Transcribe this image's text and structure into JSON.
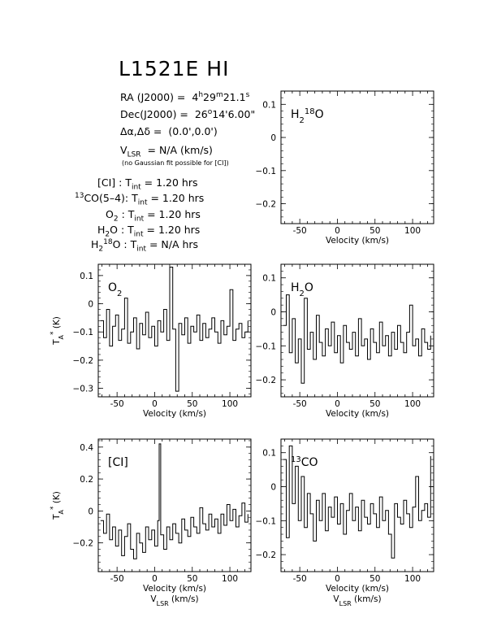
{
  "title": "L1521E HI",
  "info": {
    "ra_label": "RA (J2000) =",
    "ra_h": "4",
    "ra_m": "29",
    "ra_s": "21.1",
    "dec_label": "Dec(J2000) =",
    "dec_d": "26",
    "dec_m": "14",
    "dec_s": "6.00",
    "offset_label": "Δα,Δδ =",
    "offset_value": "(0.0',0.0')",
    "vlsr_value": "= N/A  (km/s)",
    "note": "(no Gaussian fit possible for [CI])",
    "tint": [
      {
        "species": "[CI] :",
        "value": "1.20 hrs"
      },
      {
        "species": "CO(5–4):",
        "value": "1.20 hrs"
      },
      {
        "species": ":",
        "value": "1.20 hrs"
      },
      {
        "species": ":",
        "value": "1.20 hrs"
      },
      {
        "species": ":",
        "value": "N/A hrs"
      }
    ]
  },
  "chart_data": [
    {
      "type": "line",
      "label": "H2 18O",
      "line_name": "H2 18O",
      "xlabel": "Velocity (km/s)",
      "ylabel": "",
      "xlim": [
        -75,
        128
      ],
      "ylim": [
        -0.26,
        0.14
      ],
      "xticks": [
        -50,
        0,
        50,
        100
      ],
      "yticks": [
        0.1,
        0,
        -0.1,
        -0.2
      ],
      "ytick_labels": [
        "0.1",
        "0",
        "−0.1",
        "−0.2"
      ],
      "x": [],
      "y": []
    },
    {
      "type": "line",
      "label": "O2",
      "xlabel": "Velocity (km/s)",
      "ylabel": "T*A (K)",
      "xlim": [
        -75,
        128
      ],
      "ylim": [
        -0.33,
        0.14
      ],
      "xticks": [
        -50,
        0,
        50,
        100
      ],
      "yticks": [
        0.1,
        0,
        -0.1,
        -0.2,
        -0.3
      ],
      "ytick_labels": [
        "0.1",
        "0",
        "−0.1",
        "−0.2",
        "−0.3"
      ],
      "x": [
        -72,
        -68,
        -64,
        -60,
        -56,
        -52,
        -48,
        -44,
        -40,
        -36,
        -32,
        -28,
        -24,
        -20,
        -16,
        -12,
        -8,
        -4,
        0,
        4,
        8,
        12,
        16,
        20,
        24,
        28,
        32,
        36,
        40,
        44,
        48,
        52,
        56,
        60,
        64,
        68,
        72,
        76,
        80,
        84,
        88,
        92,
        96,
        100,
        104,
        108,
        112,
        116,
        120,
        124
      ],
      "y": [
        -0.06,
        -0.12,
        -0.02,
        -0.15,
        -0.08,
        -0.04,
        -0.13,
        -0.09,
        0.02,
        -0.14,
        -0.1,
        -0.05,
        -0.16,
        -0.07,
        -0.11,
        -0.03,
        -0.12,
        -0.08,
        -0.15,
        -0.06,
        -0.1,
        -0.02,
        -0.13,
        0.13,
        -0.09,
        -0.31,
        -0.07,
        -0.11,
        -0.05,
        -0.14,
        -0.08,
        -0.1,
        -0.04,
        -0.13,
        -0.07,
        -0.12,
        -0.09,
        -0.05,
        -0.1,
        -0.14,
        -0.06,
        -0.11,
        -0.08,
        0.05,
        -0.13,
        -0.09,
        -0.07,
        -0.12,
        -0.1,
        -0.06
      ]
    },
    {
      "type": "line",
      "label": "H2O",
      "xlabel": "Velocity (km/s)",
      "ylabel": "",
      "xlim": [
        -75,
        128
      ],
      "ylim": [
        -0.25,
        0.14
      ],
      "xticks": [
        -50,
        0,
        50,
        100
      ],
      "yticks": [
        0.1,
        0,
        -0.1,
        -0.2
      ],
      "ytick_labels": [
        "0.1",
        "0",
        "−0.1",
        "−0.2"
      ],
      "x": [
        -72,
        -68,
        -64,
        -60,
        -56,
        -52,
        -48,
        -44,
        -40,
        -36,
        -32,
        -28,
        -24,
        -20,
        -16,
        -12,
        -8,
        -4,
        0,
        4,
        8,
        12,
        16,
        20,
        24,
        28,
        32,
        36,
        40,
        44,
        48,
        52,
        56,
        60,
        64,
        68,
        72,
        76,
        80,
        84,
        88,
        92,
        96,
        100,
        104,
        108,
        112,
        116,
        120,
        124
      ],
      "y": [
        -0.04,
        0.05,
        -0.12,
        -0.02,
        -0.15,
        -0.08,
        -0.21,
        0.04,
        -0.11,
        -0.06,
        -0.14,
        -0.01,
        -0.09,
        -0.13,
        -0.05,
        -0.1,
        -0.03,
        -0.12,
        -0.07,
        -0.15,
        -0.04,
        -0.09,
        -0.11,
        -0.06,
        -0.13,
        -0.02,
        -0.1,
        -0.08,
        -0.14,
        -0.05,
        -0.09,
        -0.12,
        -0.03,
        -0.1,
        -0.07,
        -0.13,
        -0.06,
        -0.11,
        -0.04,
        -0.09,
        -0.12,
        -0.06,
        0.02,
        -0.1,
        -0.08,
        -0.13,
        -0.05,
        -0.09,
        -0.11,
        -0.07
      ]
    },
    {
      "type": "line",
      "label": "[CI]",
      "xlabel": "Velocity (km/s)",
      "xlabel2": "V_LSR (km/s)",
      "ylabel": "T*A (K)",
      "xlim": [
        -75,
        128
      ],
      "ylim": [
        -0.38,
        0.45
      ],
      "xticks": [
        -50,
        0,
        50,
        100
      ],
      "yticks": [
        0.4,
        0.2,
        0,
        -0.2
      ],
      "ytick_labels": [
        "0.4",
        "0.2",
        "0",
        "−0.2"
      ],
      "x": [
        -72,
        -68,
        -64,
        -60,
        -56,
        -52,
        -48,
        -44,
        -40,
        -36,
        -32,
        -28,
        -24,
        -20,
        -16,
        -12,
        -8,
        -4,
        0,
        4,
        6,
        8,
        12,
        16,
        20,
        24,
        28,
        32,
        36,
        40,
        44,
        48,
        52,
        56,
        60,
        64,
        68,
        72,
        76,
        80,
        84,
        88,
        92,
        96,
        100,
        104,
        108,
        112,
        116,
        120,
        124
      ],
      "y": [
        -0.06,
        -0.14,
        -0.02,
        -0.18,
        -0.1,
        -0.22,
        -0.12,
        -0.28,
        -0.16,
        -0.08,
        -0.24,
        -0.3,
        -0.14,
        -0.2,
        -0.26,
        -0.1,
        -0.18,
        -0.12,
        -0.22,
        -0.06,
        0.42,
        -0.15,
        -0.24,
        -0.1,
        -0.18,
        -0.08,
        -0.14,
        -0.2,
        -0.05,
        -0.12,
        -0.16,
        -0.04,
        -0.1,
        -0.14,
        0.02,
        -0.08,
        -0.12,
        -0.02,
        -0.1,
        -0.05,
        -0.14,
        -0.02,
        -0.09,
        0.04,
        -0.06,
        0.01,
        -0.1,
        -0.03,
        0.05,
        -0.07,
        -0.02
      ]
    },
    {
      "type": "line",
      "label": "13CO",
      "xlabel": "Velocity (km/s)",
      "xlabel2": "V_LSR (km/s)",
      "ylabel": "",
      "xlim": [
        -75,
        128
      ],
      "ylim": [
        -0.25,
        0.14
      ],
      "xticks": [
        -50,
        0,
        50,
        100
      ],
      "yticks": [
        0.1,
        0,
        -0.1,
        -0.2
      ],
      "ytick_labels": [
        "0.1",
        "0",
        "−0.1",
        "−0.2"
      ],
      "x": [
        -72,
        -68,
        -64,
        -60,
        -56,
        -52,
        -48,
        -44,
        -40,
        -36,
        -32,
        -28,
        -24,
        -20,
        -16,
        -12,
        -8,
        -4,
        0,
        4,
        8,
        12,
        16,
        20,
        24,
        28,
        32,
        36,
        40,
        44,
        48,
        52,
        56,
        60,
        64,
        68,
        72,
        76,
        80,
        84,
        88,
        92,
        96,
        100,
        104,
        108,
        112,
        116,
        120,
        124
      ],
      "y": [
        0.08,
        -0.15,
        0.12,
        -0.05,
        0.06,
        -0.1,
        0.03,
        -0.12,
        -0.02,
        -0.08,
        -0.16,
        -0.04,
        -0.1,
        -0.02,
        -0.13,
        -0.06,
        -0.09,
        -0.03,
        -0.11,
        -0.05,
        -0.14,
        -0.07,
        -0.02,
        -0.1,
        -0.06,
        -0.13,
        -0.04,
        -0.09,
        -0.11,
        -0.05,
        -0.08,
        -0.12,
        -0.03,
        -0.1,
        -0.07,
        -0.14,
        -0.21,
        -0.05,
        -0.09,
        -0.11,
        -0.04,
        -0.08,
        -0.12,
        -0.06,
        0.03,
        -0.1,
        -0.07,
        -0.05,
        -0.09,
        0.09
      ]
    }
  ]
}
